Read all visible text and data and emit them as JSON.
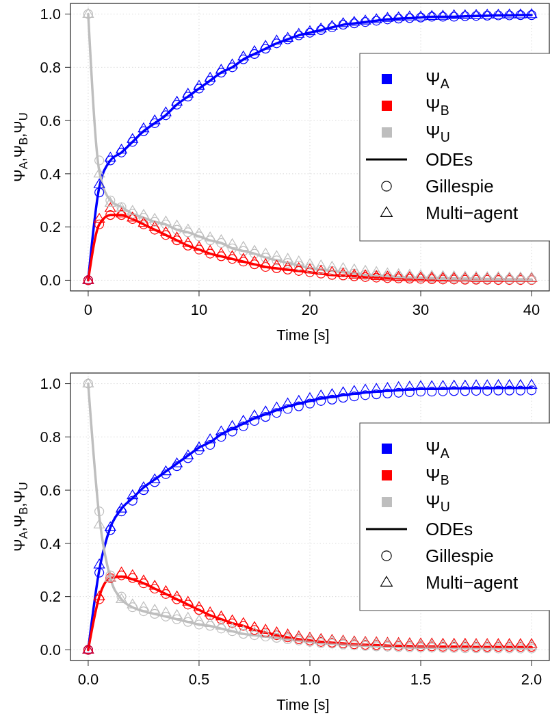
{
  "chart_data": [
    {
      "type": "line",
      "xlabel": "Time [s]",
      "ylabel": "Ψ$_{A}$,Ψ$_{B}$,Ψ$_{U}$",
      "xlim": [
        -1.6,
        41.6
      ],
      "ylim": [
        -0.04,
        1.04
      ],
      "xticks": [
        0,
        10,
        20,
        30,
        40
      ],
      "yticks": [
        {
          "value": 0,
          "label": "0.0"
        },
        {
          "value": 0.2,
          "label": "0.2"
        },
        {
          "value": 0.4,
          "label": "0.4"
        },
        {
          "value": 0.6,
          "label": "0.6"
        },
        {
          "value": 0.8,
          "label": "0.8"
        },
        {
          "value": 1,
          "label": "1.0"
        }
      ],
      "grid": true,
      "legend": "right",
      "annotations": [
        "ODEs",
        "Gillespie",
        "Multi−agent"
      ],
      "x": [
        0,
        1,
        2,
        3,
        4,
        5,
        6,
        7,
        8,
        9,
        10,
        11,
        12,
        13,
        14,
        15,
        16,
        17,
        18,
        19,
        20,
        21,
        22,
        23,
        24,
        25,
        26,
        27,
        28,
        29,
        30,
        31,
        32,
        33,
        34,
        35,
        36,
        37,
        38,
        39,
        40
      ],
      "series": [
        {
          "name": "Ψ$_{A}$",
          "type": "line",
          "color": "#0000ff",
          "values": [
            0,
            0.35,
            0.45,
            0.48,
            0.52,
            0.56,
            0.59,
            0.62,
            0.66,
            0.69,
            0.72,
            0.75,
            0.78,
            0.8,
            0.83,
            0.85,
            0.87,
            0.89,
            0.905,
            0.92,
            0.93,
            0.94,
            0.95,
            0.96,
            0.965,
            0.97,
            0.975,
            0.98,
            0.983,
            0.985,
            0.987,
            0.99,
            0.99,
            0.99,
            0.992,
            0.993,
            0.994,
            0.995,
            0.995,
            0.996,
            0.996
          ]
        },
        {
          "name": "Ψ$_{B}$",
          "type": "line",
          "color": "#ff0000",
          "values": [
            0,
            0.21,
            0.245,
            0.245,
            0.23,
            0.21,
            0.19,
            0.17,
            0.15,
            0.13,
            0.115,
            0.1,
            0.09,
            0.08,
            0.07,
            0.06,
            0.05,
            0.045,
            0.04,
            0.035,
            0.03,
            0.025,
            0.02,
            0.018,
            0.015,
            0.012,
            0.01,
            0.008,
            0.007,
            0.006,
            0.005,
            0.004,
            0.003,
            0.003,
            0.002,
            0.002,
            0.002,
            0.001,
            0.001,
            0.001,
            0.001
          ]
        },
        {
          "name": "Ψ$_{U}$",
          "type": "line",
          "color": "#bebebe",
          "values": [
            1,
            0.41,
            0.3,
            0.275,
            0.25,
            0.235,
            0.22,
            0.21,
            0.19,
            0.18,
            0.165,
            0.15,
            0.14,
            0.12,
            0.11,
            0.1,
            0.085,
            0.075,
            0.065,
            0.055,
            0.045,
            0.04,
            0.035,
            0.03,
            0.025,
            0.02,
            0.018,
            0.015,
            0.013,
            0.011,
            0.01,
            0.009,
            0.008,
            0.007,
            0.006,
            0.006,
            0.005,
            0.005,
            0.004,
            0.004,
            0.003
          ]
        },
        {
          "type": "scatter",
          "marker": "circle",
          "color": "#0000ff",
          "values": [
            0,
            0.33,
            0.45,
            0.48,
            0.52,
            0.56,
            0.59,
            0.62,
            0.66,
            0.69,
            0.72,
            0.75,
            0.78,
            0.8,
            0.83,
            0.85,
            0.87,
            0.89,
            0.905,
            0.92,
            0.93,
            0.94,
            0.95,
            0.96,
            0.965,
            0.97,
            0.975,
            0.98,
            0.983,
            0.985,
            0.987,
            0.99,
            0.99,
            0.99,
            0.992,
            0.993,
            0.994,
            0.995,
            0.995,
            0.996,
            0.996
          ]
        },
        {
          "type": "scatter",
          "marker": "circle",
          "color": "#ff0000",
          "values": [
            0,
            0.21,
            0.245,
            0.245,
            0.23,
            0.21,
            0.19,
            0.17,
            0.15,
            0.13,
            0.115,
            0.1,
            0.09,
            0.08,
            0.07,
            0.06,
            0.05,
            0.045,
            0.04,
            0.035,
            0.03,
            0.025,
            0.02,
            0.018,
            0.015,
            0.012,
            0.01,
            0.008,
            0.007,
            0.006,
            0.005,
            0.004,
            0.003,
            0.003,
            0.002,
            0.002,
            0.002,
            0.001,
            0.001,
            0.001,
            0.001
          ]
        },
        {
          "type": "scatter",
          "marker": "circle",
          "color": "#bebebe",
          "values": [
            1,
            0.45,
            0.3,
            0.275,
            0.25,
            0.235,
            0.22,
            0.21,
            0.19,
            0.18,
            0.165,
            0.15,
            0.14,
            0.12,
            0.11,
            0.1,
            0.085,
            0.075,
            0.065,
            0.055,
            0.045,
            0.04,
            0.035,
            0.03,
            0.025,
            0.02,
            0.018,
            0.015,
            0.013,
            0.011,
            0.01,
            0.009,
            0.008,
            0.007,
            0.006,
            0.006,
            0.005,
            0.005,
            0.004,
            0.004,
            0.003
          ]
        },
        {
          "type": "scatter",
          "marker": "triangle",
          "color": "#0000ff",
          "values": [
            0,
            0.36,
            0.46,
            0.49,
            0.53,
            0.57,
            0.6,
            0.63,
            0.67,
            0.7,
            0.73,
            0.76,
            0.79,
            0.81,
            0.84,
            0.86,
            0.88,
            0.9,
            0.91,
            0.925,
            0.935,
            0.945,
            0.955,
            0.965,
            0.97,
            0.975,
            0.98,
            0.985,
            0.987,
            0.99,
            0.99,
            0.992,
            0.993,
            0.995,
            0.995,
            0.996,
            0.997,
            0.997,
            0.998,
            0.998,
            0.999
          ]
        },
        {
          "type": "scatter",
          "marker": "triangle",
          "color": "#ff0000",
          "values": [
            0,
            0.23,
            0.27,
            0.25,
            0.235,
            0.215,
            0.2,
            0.18,
            0.16,
            0.14,
            0.125,
            0.11,
            0.1,
            0.09,
            0.08,
            0.07,
            0.06,
            0.055,
            0.05,
            0.045,
            0.04,
            0.035,
            0.03,
            0.025,
            0.02,
            0.018,
            0.015,
            0.013,
            0.012,
            0.011,
            0.01,
            0.01,
            0.009,
            0.009,
            0.009,
            0.008,
            0.008,
            0.008,
            0.008,
            0.008,
            0.008
          ]
        },
        {
          "type": "scatter",
          "marker": "triangle",
          "color": "#bebebe",
          "values": [
            1,
            0.4,
            0.29,
            0.27,
            0.26,
            0.245,
            0.23,
            0.22,
            0.205,
            0.19,
            0.175,
            0.16,
            0.15,
            0.135,
            0.125,
            0.11,
            0.1,
            0.09,
            0.08,
            0.07,
            0.06,
            0.055,
            0.05,
            0.045,
            0.04,
            0.035,
            0.03,
            0.025,
            0.022,
            0.02,
            0.018,
            0.016,
            0.015,
            0.014,
            0.013,
            0.012,
            0.011,
            0.011,
            0.01,
            0.01,
            0.01
          ]
        }
      ]
    },
    {
      "type": "line",
      "xlabel": "Time [s]",
      "ylabel": "Ψ$_{A}$,Ψ$_{B}$,Ψ$_{U}$",
      "xlim": [
        -0.08,
        2.08
      ],
      "ylim": [
        -0.04,
        1.04
      ],
      "xticks": [
        {
          "value": 0,
          "label": "0.0"
        },
        {
          "value": 0.5,
          "label": "0.5"
        },
        {
          "value": 1,
          "label": "1.0"
        },
        {
          "value": 1.5,
          "label": "1.5"
        },
        {
          "value": 2,
          "label": "2.0"
        }
      ],
      "yticks": [
        {
          "value": 0,
          "label": "0.0"
        },
        {
          "value": 0.2,
          "label": "0.2"
        },
        {
          "value": 0.4,
          "label": "0.4"
        },
        {
          "value": 0.6,
          "label": "0.6"
        },
        {
          "value": 0.8,
          "label": "0.8"
        },
        {
          "value": 1,
          "label": "1.0"
        }
      ],
      "grid": true,
      "legend": "right",
      "annotations": [
        "ODEs",
        "Gillespie",
        "Multi−agent"
      ],
      "x": [
        0,
        0.05,
        0.1,
        0.15,
        0.2,
        0.25,
        0.3,
        0.35,
        0.4,
        0.45,
        0.5,
        0.55,
        0.6,
        0.65,
        0.7,
        0.75,
        0.8,
        0.85,
        0.9,
        0.95,
        1,
        1.05,
        1.1,
        1.15,
        1.2,
        1.25,
        1.3,
        1.35,
        1.4,
        1.45,
        1.5,
        1.55,
        1.6,
        1.65,
        1.7,
        1.75,
        1.8,
        1.85,
        1.9,
        1.95,
        2
      ],
      "series": [
        {
          "name": "Ψ$_{A}$",
          "type": "line",
          "color": "#0000ff",
          "values": [
            0,
            0.3,
            0.46,
            0.53,
            0.57,
            0.61,
            0.64,
            0.67,
            0.7,
            0.73,
            0.76,
            0.78,
            0.81,
            0.83,
            0.85,
            0.87,
            0.885,
            0.9,
            0.915,
            0.925,
            0.935,
            0.945,
            0.95,
            0.957,
            0.962,
            0.967,
            0.97,
            0.973,
            0.976,
            0.978,
            0.98,
            0.98,
            0.981,
            0.982,
            0.982,
            0.983,
            0.983,
            0.984,
            0.984,
            0.984,
            0.985
          ]
        },
        {
          "name": "Ψ$_{B}$",
          "type": "line",
          "color": "#ff0000",
          "values": [
            0,
            0.2,
            0.27,
            0.275,
            0.265,
            0.25,
            0.23,
            0.21,
            0.19,
            0.17,
            0.15,
            0.13,
            0.115,
            0.1,
            0.09,
            0.075,
            0.065,
            0.055,
            0.047,
            0.04,
            0.035,
            0.03,
            0.027,
            0.024,
            0.021,
            0.019,
            0.018,
            0.016,
            0.015,
            0.014,
            0.013,
            0.013,
            0.012,
            0.012,
            0.012,
            0.011,
            0.011,
            0.011,
            0.011,
            0.011,
            0.011
          ]
        },
        {
          "name": "Ψ$_{U}$",
          "type": "line",
          "color": "#bebebe",
          "values": [
            1,
            0.5,
            0.27,
            0.19,
            0.16,
            0.145,
            0.135,
            0.125,
            0.115,
            0.105,
            0.095,
            0.09,
            0.08,
            0.07,
            0.06,
            0.055,
            0.05,
            0.045,
            0.04,
            0.035,
            0.03,
            0.025,
            0.023,
            0.02,
            0.017,
            0.015,
            0.013,
            0.012,
            0.01,
            0.009,
            0.008,
            0.008,
            0.007,
            0.007,
            0.006,
            0.006,
            0.006,
            0.005,
            0.005,
            0.005,
            0.005
          ]
        },
        {
          "type": "scatter",
          "marker": "circle",
          "color": "#0000ff",
          "values": [
            0,
            0.29,
            0.45,
            0.52,
            0.56,
            0.6,
            0.63,
            0.66,
            0.69,
            0.72,
            0.75,
            0.77,
            0.8,
            0.82,
            0.84,
            0.86,
            0.875,
            0.89,
            0.905,
            0.915,
            0.925,
            0.935,
            0.94,
            0.947,
            0.952,
            0.957,
            0.96,
            0.963,
            0.966,
            0.968,
            0.97,
            0.97,
            0.971,
            0.972,
            0.972,
            0.973,
            0.973,
            0.974,
            0.974,
            0.974,
            0.975
          ]
        },
        {
          "type": "scatter",
          "marker": "circle",
          "color": "#ff0000",
          "values": [
            0,
            0.19,
            0.27,
            0.28,
            0.27,
            0.25,
            0.23,
            0.21,
            0.19,
            0.17,
            0.15,
            0.13,
            0.115,
            0.1,
            0.09,
            0.075,
            0.065,
            0.055,
            0.047,
            0.04,
            0.035,
            0.03,
            0.027,
            0.024,
            0.021,
            0.019,
            0.018,
            0.016,
            0.015,
            0.014,
            0.013,
            0.013,
            0.012,
            0.012,
            0.012,
            0.011,
            0.011,
            0.011,
            0.011,
            0.011,
            0.011
          ]
        },
        {
          "type": "scatter",
          "marker": "circle",
          "color": "#bebebe",
          "values": [
            1,
            0.52,
            0.28,
            0.2,
            0.16,
            0.145,
            0.135,
            0.125,
            0.115,
            0.105,
            0.095,
            0.09,
            0.08,
            0.07,
            0.06,
            0.055,
            0.05,
            0.045,
            0.04,
            0.035,
            0.03,
            0.025,
            0.023,
            0.02,
            0.017,
            0.015,
            0.013,
            0.012,
            0.01,
            0.009,
            0.008,
            0.008,
            0.007,
            0.007,
            0.006,
            0.006,
            0.006,
            0.005,
            0.005,
            0.005,
            0.005
          ]
        },
        {
          "type": "scatter",
          "marker": "triangle",
          "color": "#0000ff",
          "values": [
            0,
            0.32,
            0.46,
            0.53,
            0.58,
            0.61,
            0.64,
            0.67,
            0.7,
            0.73,
            0.76,
            0.79,
            0.82,
            0.84,
            0.86,
            0.88,
            0.895,
            0.91,
            0.925,
            0.935,
            0.945,
            0.955,
            0.96,
            0.967,
            0.972,
            0.977,
            0.98,
            0.983,
            0.986,
            0.988,
            0.99,
            0.99,
            0.991,
            0.992,
            0.992,
            0.993,
            0.993,
            0.994,
            0.994,
            0.994,
            0.995
          ]
        },
        {
          "type": "scatter",
          "marker": "triangle",
          "color": "#ff0000",
          "values": [
            0,
            0.2,
            0.27,
            0.29,
            0.28,
            0.26,
            0.24,
            0.22,
            0.2,
            0.18,
            0.16,
            0.14,
            0.125,
            0.11,
            0.1,
            0.085,
            0.075,
            0.065,
            0.057,
            0.05,
            0.045,
            0.04,
            0.037,
            0.034,
            0.031,
            0.029,
            0.028,
            0.026,
            0.025,
            0.024,
            0.023,
            0.023,
            0.022,
            0.022,
            0.022,
            0.021,
            0.021,
            0.021,
            0.021,
            0.021,
            0.021
          ]
        },
        {
          "type": "scatter",
          "marker": "triangle",
          "color": "#bebebe",
          "values": [
            1,
            0.47,
            0.27,
            0.19,
            0.17,
            0.16,
            0.15,
            0.14,
            0.13,
            0.12,
            0.11,
            0.1,
            0.09,
            0.08,
            0.07,
            0.065,
            0.06,
            0.055,
            0.05,
            0.045,
            0.04,
            0.035,
            0.033,
            0.03,
            0.027,
            0.025,
            0.023,
            0.022,
            0.02,
            0.019,
            0.018,
            0.018,
            0.017,
            0.017,
            0.016,
            0.016,
            0.016,
            0.015,
            0.015,
            0.015,
            0.015
          ]
        }
      ]
    }
  ]
}
